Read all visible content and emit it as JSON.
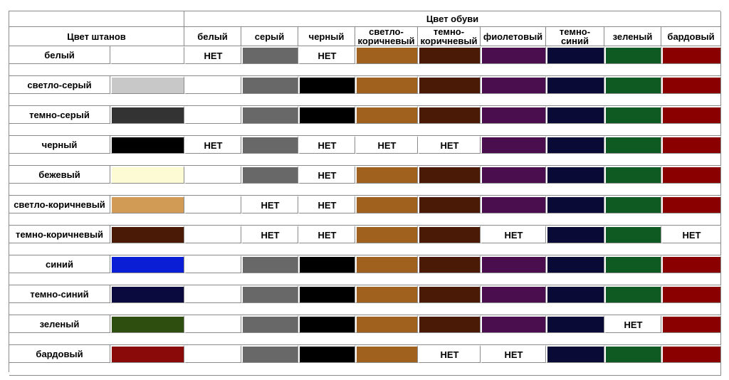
{
  "header": {
    "shoe_title": "Цвет обуви",
    "pants_title": "Цвет штанов"
  },
  "no_label": "НЕТ",
  "shoes": [
    {
      "label": "белый",
      "color": "#ffffff"
    },
    {
      "label": "серый",
      "color": "#686868"
    },
    {
      "label": "черный",
      "color": "#000000"
    },
    {
      "label": "светло-\nкоричневый",
      "color": "#a0601e"
    },
    {
      "label": "темно-\nкоричневый",
      "color": "#4a1a06"
    },
    {
      "label": "фиолетовый",
      "color": "#4a0e4e"
    },
    {
      "label": "темно-\nсиний",
      "color": "#0a0a36"
    },
    {
      "label": "зеленый",
      "color": "#0e5a22"
    },
    {
      "label": "бардовый",
      "color": "#8a0000"
    }
  ],
  "pants": [
    {
      "label": "белый",
      "color": "#ffffff",
      "no": [
        0,
        2
      ]
    },
    {
      "label": "светло-серый",
      "color": "#c8c8c8",
      "no": []
    },
    {
      "label": "темно-серый",
      "color": "#333333",
      "no": []
    },
    {
      "label": "черный",
      "color": "#000000",
      "no": [
        0,
        2,
        3,
        4
      ]
    },
    {
      "label": "бежевый",
      "color": "#fdfbd3",
      "no": [
        2
      ]
    },
    {
      "label": "светло-коричневый",
      "color": "#d19a55",
      "no": [
        1,
        2
      ]
    },
    {
      "label": "темно-коричневый",
      "color": "#4a1a06",
      "no": [
        1,
        2,
        5,
        8
      ]
    },
    {
      "label": "синий",
      "color": "#0a1ed6",
      "no": []
    },
    {
      "label": "темно-синий",
      "color": "#0a0a3e",
      "no": []
    },
    {
      "label": "зеленый",
      "color": "#2e4e10",
      "no": [
        7
      ]
    },
    {
      "label": "бардовый",
      "color": "#8a0a0a",
      "no": [
        4,
        5
      ]
    }
  ]
}
